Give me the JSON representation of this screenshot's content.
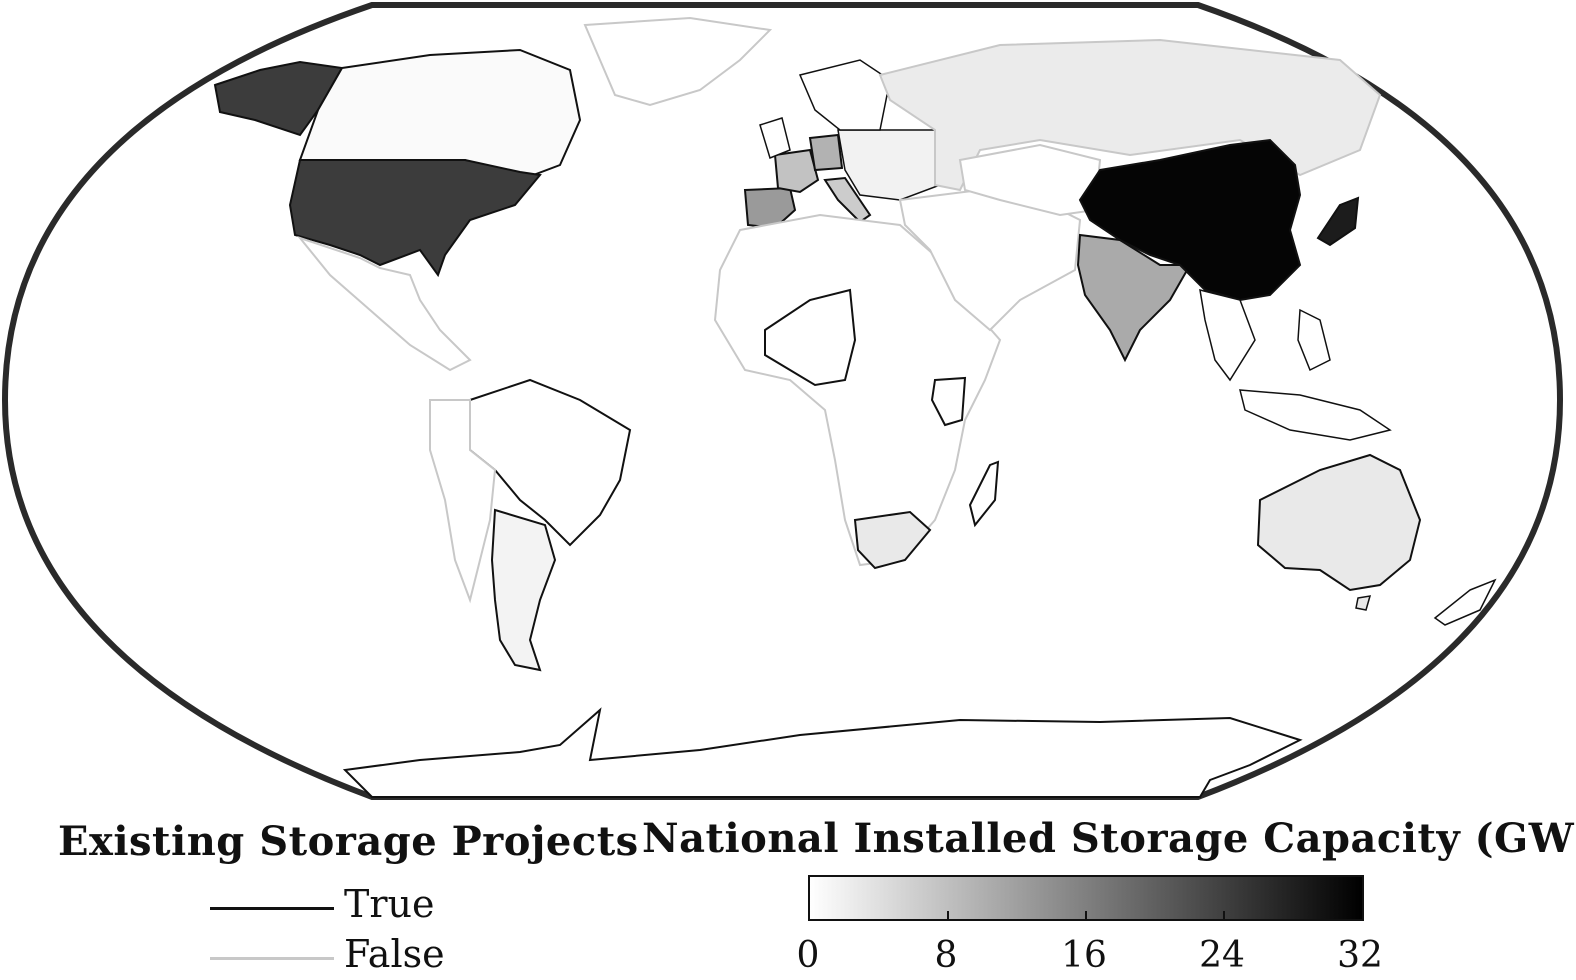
{
  "legend_existing": {
    "title": "Existing Storage Projects",
    "items": [
      {
        "label": "True",
        "color": "#111111"
      },
      {
        "label": "False",
        "color": "#c8c8c8"
      }
    ]
  },
  "legend_capacity": {
    "title": "National Installed Storage Capacity (GW)",
    "ticks": [
      "0",
      "8",
      "16",
      "24",
      "32"
    ],
    "min": 0,
    "max": 32,
    "color_low": "#ffffff",
    "color_high": "#000000"
  },
  "map_data": {
    "projection": "Robinson",
    "border_color_true": "#111111",
    "border_color_false": "#c8c8c8",
    "countries": [
      {
        "name": "China",
        "capacity_gw": 32,
        "existing": true
      },
      {
        "name": "Japan",
        "capacity_gw": 28,
        "existing": true
      },
      {
        "name": "United States",
        "capacity_gw": 24,
        "existing": true
      },
      {
        "name": "India",
        "capacity_gw": 11,
        "existing": true
      },
      {
        "name": "Spain",
        "capacity_gw": 12,
        "existing": true
      },
      {
        "name": "Germany",
        "capacity_gw": 10,
        "existing": true
      },
      {
        "name": "Italy",
        "capacity_gw": 8,
        "existing": true
      },
      {
        "name": "France",
        "capacity_gw": 7,
        "existing": true
      },
      {
        "name": "South Africa",
        "capacity_gw": 4,
        "existing": true
      },
      {
        "name": "Australia",
        "capacity_gw": 3,
        "existing": true
      },
      {
        "name": "Russia",
        "capacity_gw": 2,
        "existing": true
      },
      {
        "name": "Argentina",
        "capacity_gw": 1,
        "existing": true
      },
      {
        "name": "Canada",
        "capacity_gw": 0.5,
        "existing": true
      },
      {
        "name": "Brazil",
        "capacity_gw": 0,
        "existing": true
      }
    ]
  }
}
